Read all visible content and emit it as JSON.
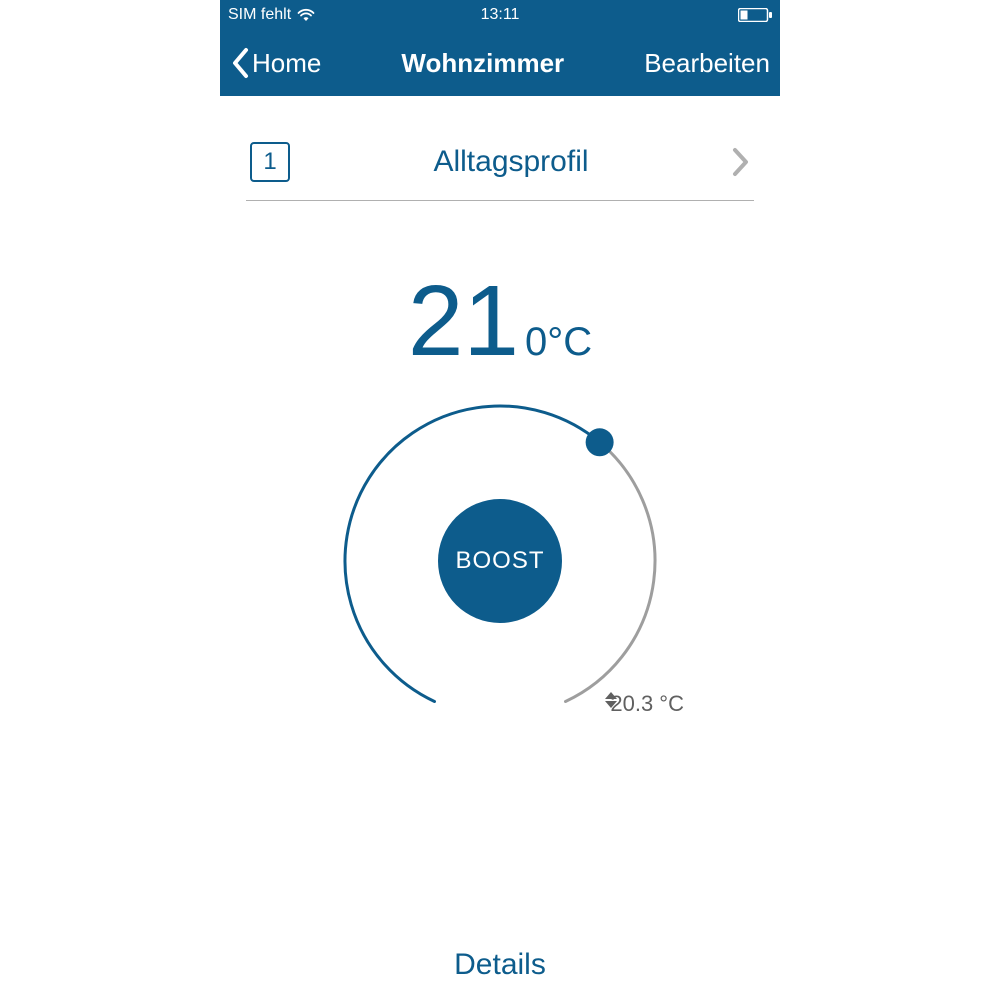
{
  "colors": {
    "primary": "#0d5c8c",
    "background": "#ffffff",
    "divider": "#b0b0b0",
    "secondary_text": "#606060",
    "dial_inactive": "#9e9e9e"
  },
  "status_bar": {
    "sim_text": "SIM fehlt",
    "time": "13:11"
  },
  "nav": {
    "back_label": "Home",
    "title": "Wohnzimmer",
    "edit_label": "Bearbeiten"
  },
  "profile": {
    "badge_number": "1",
    "label": "Alltagsprofil"
  },
  "thermostat": {
    "target_temp_main": "21",
    "target_temp_suffix": "0°C",
    "boost_label": "BOOST",
    "current_temp": "20.3 °C",
    "dial": {
      "radius": 155,
      "stroke_width": 3,
      "gap_start_angle_deg": 115,
      "gap_end_angle_deg": 65,
      "active_end_angle_deg": 320,
      "handle_radius": 14,
      "boost_button_diameter": 124,
      "active_color": "#0d5c8c",
      "inactive_color": "#9e9e9e"
    }
  },
  "details_label": "Details"
}
